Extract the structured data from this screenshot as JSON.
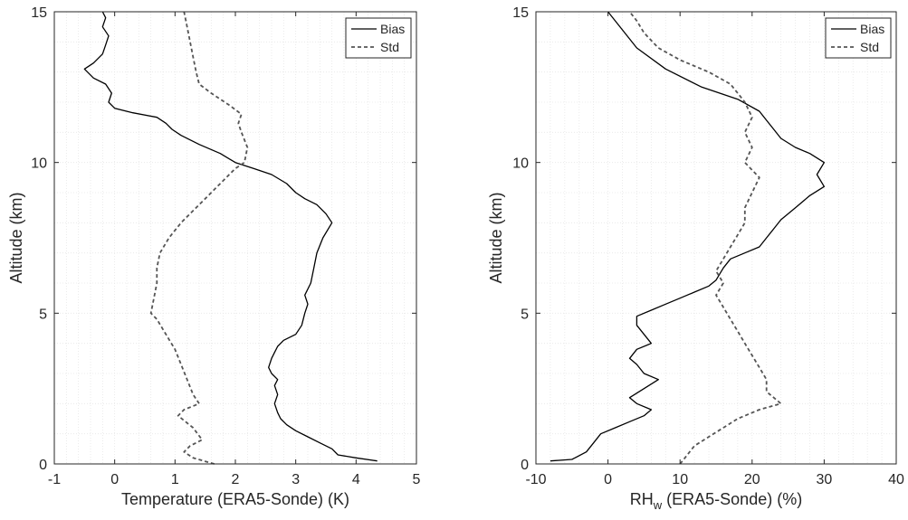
{
  "chart_data": [
    {
      "type": "line",
      "title": "",
      "xlabel": "Temperature (ERA5-Sonde) (K)",
      "ylabel": "Altitude (km)",
      "xlim": [
        -1,
        5
      ],
      "ylim": [
        0,
        15
      ],
      "xticks": [
        "-1",
        "0",
        "1",
        "2",
        "3",
        "4",
        "5"
      ],
      "yticks": [
        "0",
        "5",
        "10",
        "15"
      ],
      "grid": "minor",
      "legend_position": "top-right",
      "series": [
        {
          "name": "Bias",
          "color": "#000000",
          "style": "solid",
          "points": [
            [
              4.35,
              0.1
            ],
            [
              4.0,
              0.2
            ],
            [
              3.7,
              0.3
            ],
            [
              3.6,
              0.5
            ],
            [
              3.4,
              0.7
            ],
            [
              3.2,
              0.9
            ],
            [
              3.0,
              1.1
            ],
            [
              2.85,
              1.3
            ],
            [
              2.75,
              1.5
            ],
            [
              2.7,
              1.7
            ],
            [
              2.65,
              2.0
            ],
            [
              2.7,
              2.3
            ],
            [
              2.65,
              2.6
            ],
            [
              2.7,
              2.8
            ],
            [
              2.6,
              3.0
            ],
            [
              2.55,
              3.2
            ],
            [
              2.6,
              3.5
            ],
            [
              2.65,
              3.7
            ],
            [
              2.7,
              3.9
            ],
            [
              2.8,
              4.1
            ],
            [
              3.0,
              4.3
            ],
            [
              3.1,
              4.6
            ],
            [
              3.15,
              5.0
            ],
            [
              3.2,
              5.3
            ],
            [
              3.15,
              5.6
            ],
            [
              3.25,
              6.0
            ],
            [
              3.3,
              6.5
            ],
            [
              3.35,
              7.0
            ],
            [
              3.45,
              7.5
            ],
            [
              3.6,
              8.0
            ],
            [
              3.5,
              8.3
            ],
            [
              3.35,
              8.6
            ],
            [
              3.15,
              8.8
            ],
            [
              3.0,
              9.0
            ],
            [
              2.85,
              9.3
            ],
            [
              2.6,
              9.6
            ],
            [
              2.3,
              9.8
            ],
            [
              2.0,
              10.0
            ],
            [
              1.75,
              10.3
            ],
            [
              1.4,
              10.6
            ],
            [
              1.1,
              10.9
            ],
            [
              0.95,
              11.1
            ],
            [
              0.85,
              11.3
            ],
            [
              0.7,
              11.5
            ],
            [
              0.3,
              11.65
            ],
            [
              0.0,
              11.8
            ],
            [
              -0.1,
              12.0
            ],
            [
              -0.05,
              12.3
            ],
            [
              -0.15,
              12.6
            ],
            [
              -0.35,
              12.8
            ],
            [
              -0.5,
              13.1
            ],
            [
              -0.35,
              13.3
            ],
            [
              -0.2,
              13.6
            ],
            [
              -0.15,
              13.9
            ],
            [
              -0.1,
              14.2
            ],
            [
              -0.2,
              14.5
            ],
            [
              -0.15,
              14.8
            ],
            [
              -0.2,
              15.0
            ]
          ]
        },
        {
          "name": "Std",
          "color": "#555555",
          "style": "dashed",
          "points": [
            [
              1.65,
              0.0
            ],
            [
              1.3,
              0.2
            ],
            [
              1.15,
              0.4
            ],
            [
              1.25,
              0.6
            ],
            [
              1.45,
              0.8
            ],
            [
              1.3,
              1.2
            ],
            [
              1.05,
              1.6
            ],
            [
              1.15,
              1.8
            ],
            [
              1.4,
              2.0
            ],
            [
              1.3,
              2.3
            ],
            [
              1.2,
              2.8
            ],
            [
              1.1,
              3.3
            ],
            [
              1.0,
              3.8
            ],
            [
              0.85,
              4.3
            ],
            [
              0.7,
              4.8
            ],
            [
              0.6,
              5.0
            ],
            [
              0.65,
              5.5
            ],
            [
              0.7,
              6.0
            ],
            [
              0.7,
              6.5
            ],
            [
              0.75,
              7.0
            ],
            [
              0.9,
              7.5
            ],
            [
              1.1,
              8.0
            ],
            [
              1.3,
              8.4
            ],
            [
              1.5,
              8.8
            ],
            [
              1.7,
              9.2
            ],
            [
              1.85,
              9.5
            ],
            [
              2.0,
              9.8
            ],
            [
              2.15,
              10.0
            ],
            [
              2.2,
              10.5
            ],
            [
              2.1,
              11.0
            ],
            [
              2.05,
              11.3
            ],
            [
              2.1,
              11.6
            ],
            [
              1.9,
              11.9
            ],
            [
              1.6,
              12.3
            ],
            [
              1.4,
              12.6
            ],
            [
              1.35,
              13.0
            ],
            [
              1.3,
              13.5
            ],
            [
              1.25,
              14.0
            ],
            [
              1.2,
              14.5
            ],
            [
              1.15,
              15.0
            ]
          ]
        }
      ]
    },
    {
      "type": "line",
      "title": "",
      "xlabel_main": "RH",
      "xlabel_sub": "w",
      "xlabel_rest": " (ERA5-Sonde) (%)",
      "ylabel": "Altitude (km)",
      "xlim": [
        -10,
        40
      ],
      "ylim": [
        0,
        15
      ],
      "xticks": [
        "-10",
        "0",
        "10",
        "20",
        "30",
        "40"
      ],
      "yticks": [
        "0",
        "5",
        "10",
        "15"
      ],
      "grid": "minor",
      "legend_position": "top-right",
      "series": [
        {
          "name": "Bias",
          "color": "#000000",
          "style": "solid",
          "points": [
            [
              -8,
              0.1
            ],
            [
              -5,
              0.15
            ],
            [
              -3,
              0.4
            ],
            [
              -2,
              0.7
            ],
            [
              -1,
              1.0
            ],
            [
              1,
              1.2
            ],
            [
              3,
              1.4
            ],
            [
              5,
              1.6
            ],
            [
              6,
              1.8
            ],
            [
              4,
              2.0
            ],
            [
              3,
              2.2
            ],
            [
              5,
              2.5
            ],
            [
              7,
              2.8
            ],
            [
              5,
              3.0
            ],
            [
              4,
              3.3
            ],
            [
              3,
              3.5
            ],
            [
              4,
              3.8
            ],
            [
              6,
              4.0
            ],
            [
              5,
              4.3
            ],
            [
              4,
              4.6
            ],
            [
              4,
              4.9
            ],
            [
              6,
              5.1
            ],
            [
              8,
              5.3
            ],
            [
              10,
              5.5
            ],
            [
              12,
              5.7
            ],
            [
              14,
              5.9
            ],
            [
              15,
              6.1
            ],
            [
              16,
              6.5
            ],
            [
              17,
              6.8
            ],
            [
              19,
              7.0
            ],
            [
              21,
              7.2
            ],
            [
              22,
              7.5
            ],
            [
              23,
              7.8
            ],
            [
              24,
              8.1
            ],
            [
              26,
              8.5
            ],
            [
              28,
              8.9
            ],
            [
              30,
              9.2
            ],
            [
              29,
              9.6
            ],
            [
              30,
              10.0
            ],
            [
              28,
              10.3
            ],
            [
              26,
              10.5
            ],
            [
              24,
              10.8
            ],
            [
              23,
              11.1
            ],
            [
              22,
              11.4
            ],
            [
              21,
              11.7
            ],
            [
              18,
              12.1
            ],
            [
              13,
              12.5
            ],
            [
              8,
              13.1
            ],
            [
              4,
              13.8
            ],
            [
              2,
              14.4
            ],
            [
              0,
              15.0
            ]
          ]
        },
        {
          "name": "Std",
          "color": "#555555",
          "style": "dashed",
          "points": [
            [
              10,
              0.0
            ],
            [
              11,
              0.3
            ],
            [
              12,
              0.6
            ],
            [
              14,
              0.9
            ],
            [
              16,
              1.2
            ],
            [
              18,
              1.5
            ],
            [
              21,
              1.8
            ],
            [
              24,
              2.0
            ],
            [
              22,
              2.4
            ],
            [
              22,
              2.8
            ],
            [
              21,
              3.2
            ],
            [
              20,
              3.6
            ],
            [
              19,
              4.0
            ],
            [
              18,
              4.4
            ],
            [
              17,
              4.8
            ],
            [
              16,
              5.2
            ],
            [
              15,
              5.6
            ],
            [
              16,
              6.0
            ],
            [
              15,
              6.4
            ],
            [
              16,
              6.8
            ],
            [
              17,
              7.2
            ],
            [
              18,
              7.6
            ],
            [
              19,
              8.0
            ],
            [
              19,
              8.5
            ],
            [
              20,
              9.0
            ],
            [
              21,
              9.5
            ],
            [
              19,
              10.0
            ],
            [
              20,
              10.5
            ],
            [
              19,
              11.0
            ],
            [
              20,
              11.5
            ],
            [
              19,
              12.0
            ],
            [
              18,
              12.3
            ],
            [
              17,
              12.6
            ],
            [
              14,
              13.0
            ],
            [
              10,
              13.4
            ],
            [
              7,
              13.8
            ],
            [
              5,
              14.3
            ],
            [
              4,
              14.7
            ],
            [
              3,
              15.0
            ]
          ]
        }
      ]
    }
  ]
}
